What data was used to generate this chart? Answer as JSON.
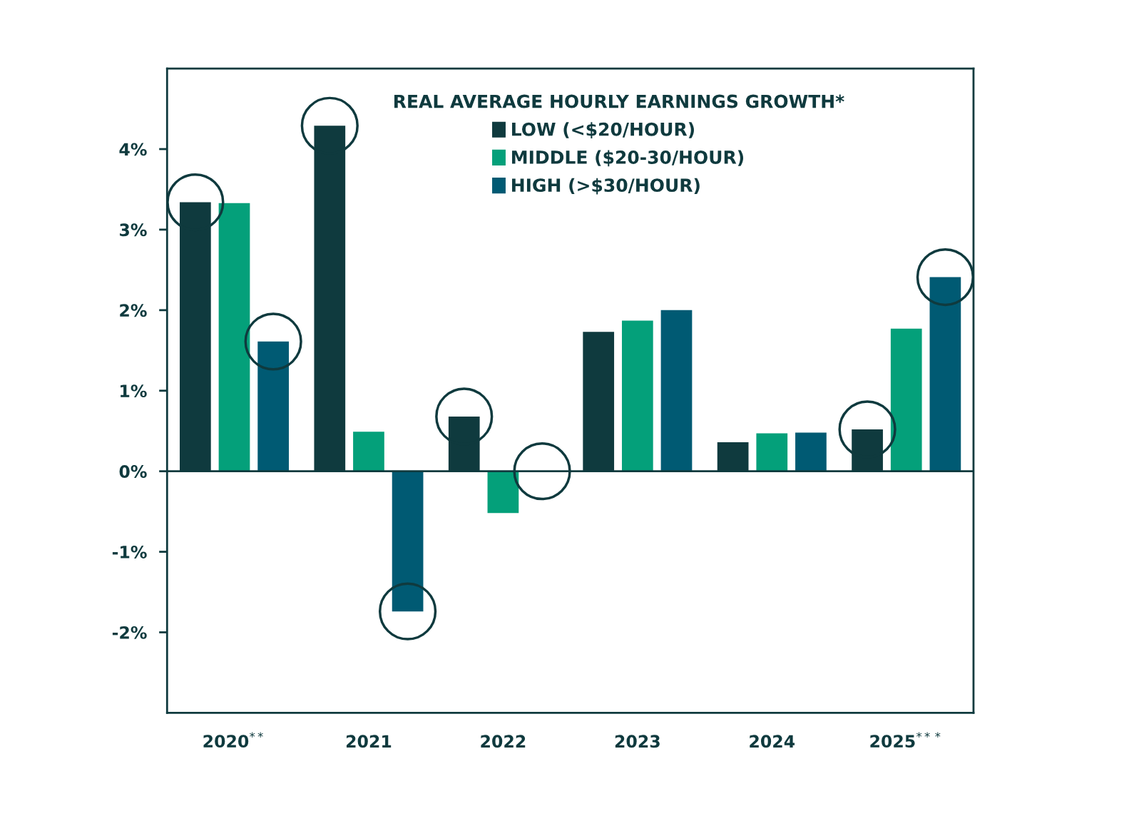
{
  "chart_data": {
    "type": "bar",
    "legend_title": "REAL AVERAGE HOURLY EARNINGS GROWTH*",
    "categories": [
      "2020$^{**}$",
      "2021",
      "2022",
      "2023",
      "2024",
      "2025$^{***}$"
    ],
    "series": [
      {
        "name": "LOW (<$20/HOUR)",
        "color": "#0f3a3e",
        "values": [
          3.34,
          4.29,
          0.68,
          1.73,
          0.36,
          0.52
        ]
      },
      {
        "name": "MIDDLE ($20-30/HOUR)",
        "color": "#04a07a",
        "values": [
          3.33,
          0.49,
          -0.52,
          1.87,
          0.47,
          1.77
        ]
      },
      {
        "name": "HIGH (>$30/HOUR)",
        "color": "#005a73",
        "values": [
          1.61,
          -1.74,
          0.0,
          2.0,
          0.48,
          2.41
        ]
      }
    ],
    "ylim": [
      -3,
      5
    ],
    "yticks": [
      {
        "value": -2,
        "label": "-2%"
      },
      {
        "value": -1,
        "label": "-1%"
      },
      {
        "value": 0,
        "label": "0%"
      },
      {
        "value": 1,
        "label": "1%"
      },
      {
        "value": 2,
        "label": "2%"
      },
      {
        "value": 3,
        "label": "3%"
      },
      {
        "value": 4,
        "label": "4%"
      }
    ],
    "ref_lines": [
      {
        "axis": "y",
        "value": 0,
        "color": "#0f3a3e"
      }
    ],
    "legend": "top",
    "grid": false
  }
}
